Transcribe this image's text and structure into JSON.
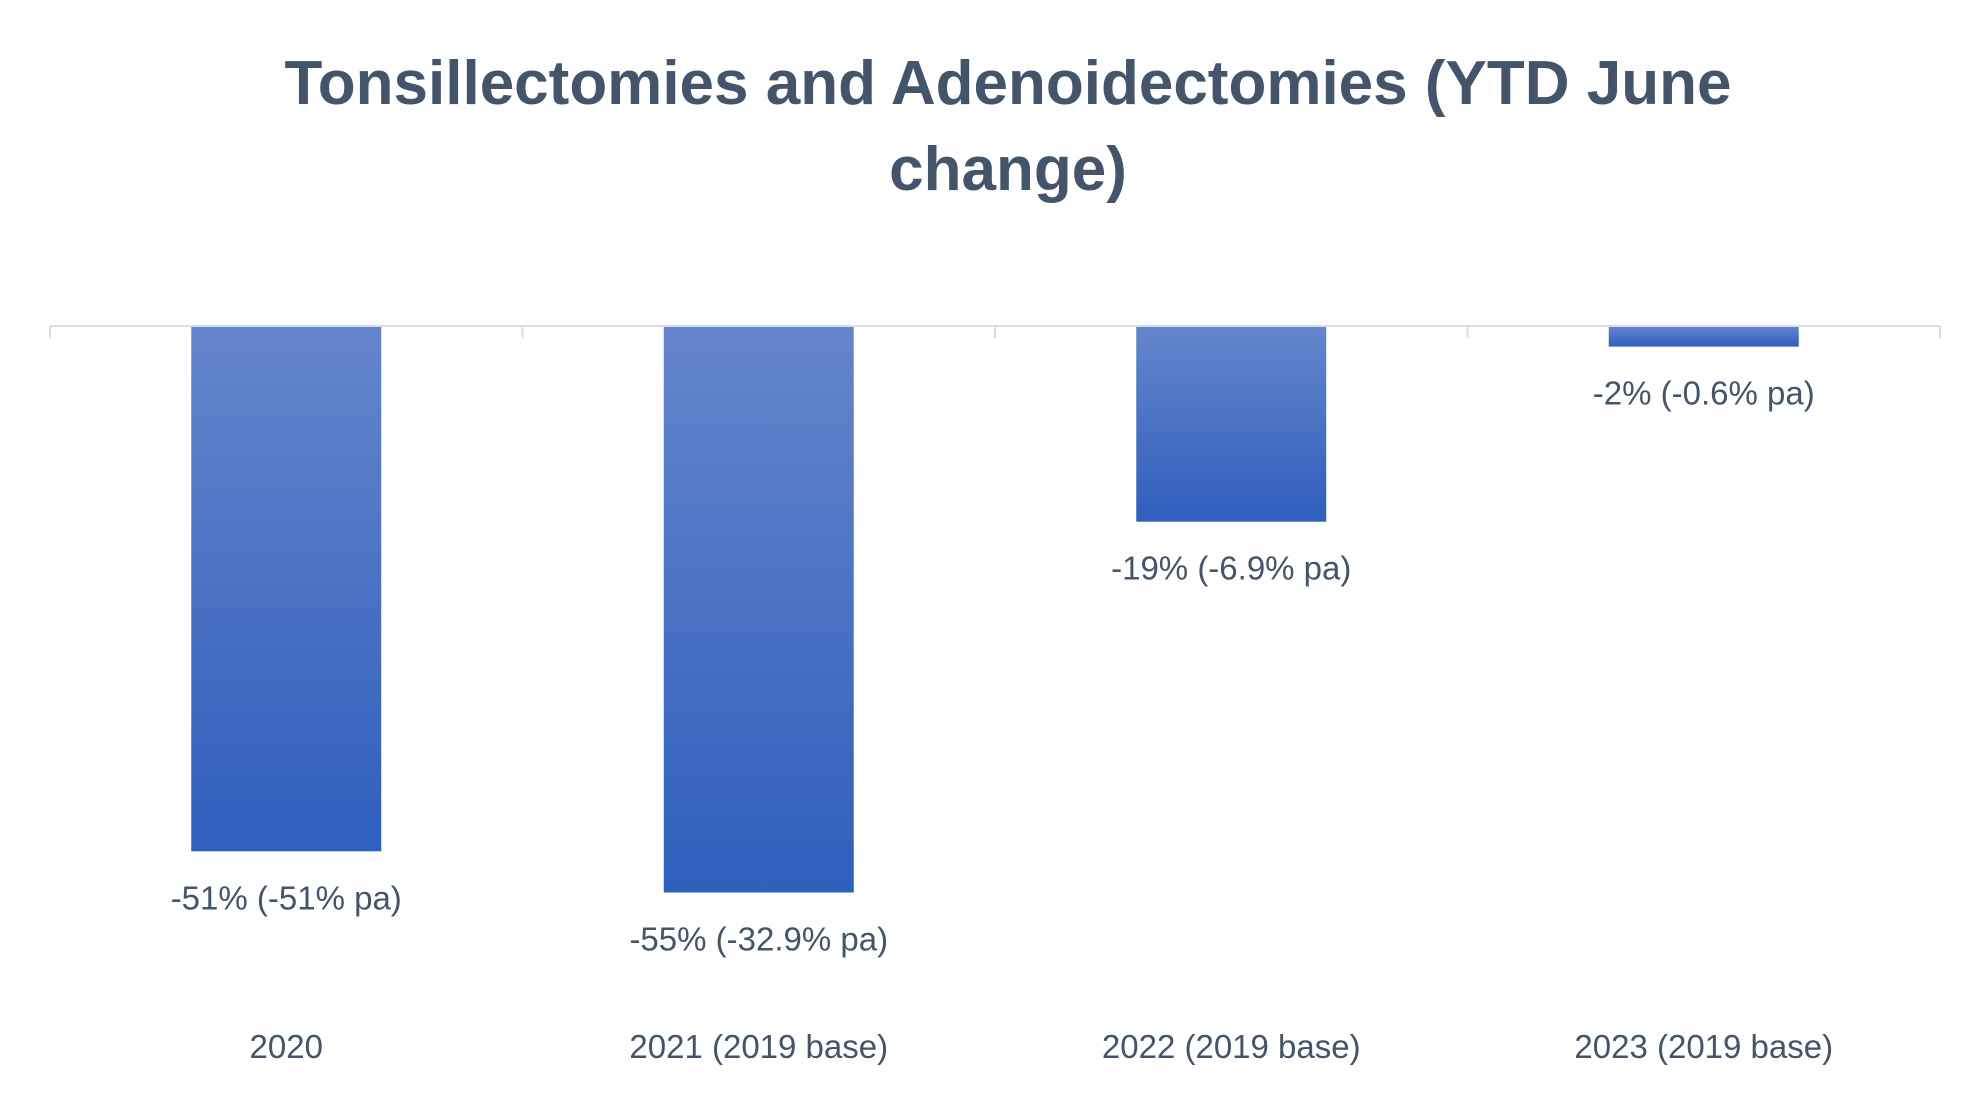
{
  "chart_data": {
    "type": "bar",
    "title": "Tonsillectomies and Adenoidectomies (YTD June change)",
    "title_lines": [
      "Tonsillectomies and Adenoidectomies (YTD June",
      "change)"
    ],
    "categories": [
      "2020",
      "2021 (2019 base)",
      "2022 (2019 base)",
      "2023 (2019 base)"
    ],
    "values": [
      -51,
      -55,
      -19,
      -2
    ],
    "data_labels": [
      "-51% (-51% pa)",
      "-55% (-32.9% pa)",
      "-19% (-6.9% pa)",
      "-2% (-0.6% pa)"
    ],
    "unit": "%",
    "ylim": [
      -55,
      0
    ],
    "grid": false,
    "legend": "none",
    "xlabel": "",
    "ylabel": ""
  },
  "colors": {
    "bar_top": "#6585cc",
    "bar_bottom": "#2e5fbd",
    "axis": "#d9dde6",
    "text": "#44546a"
  }
}
